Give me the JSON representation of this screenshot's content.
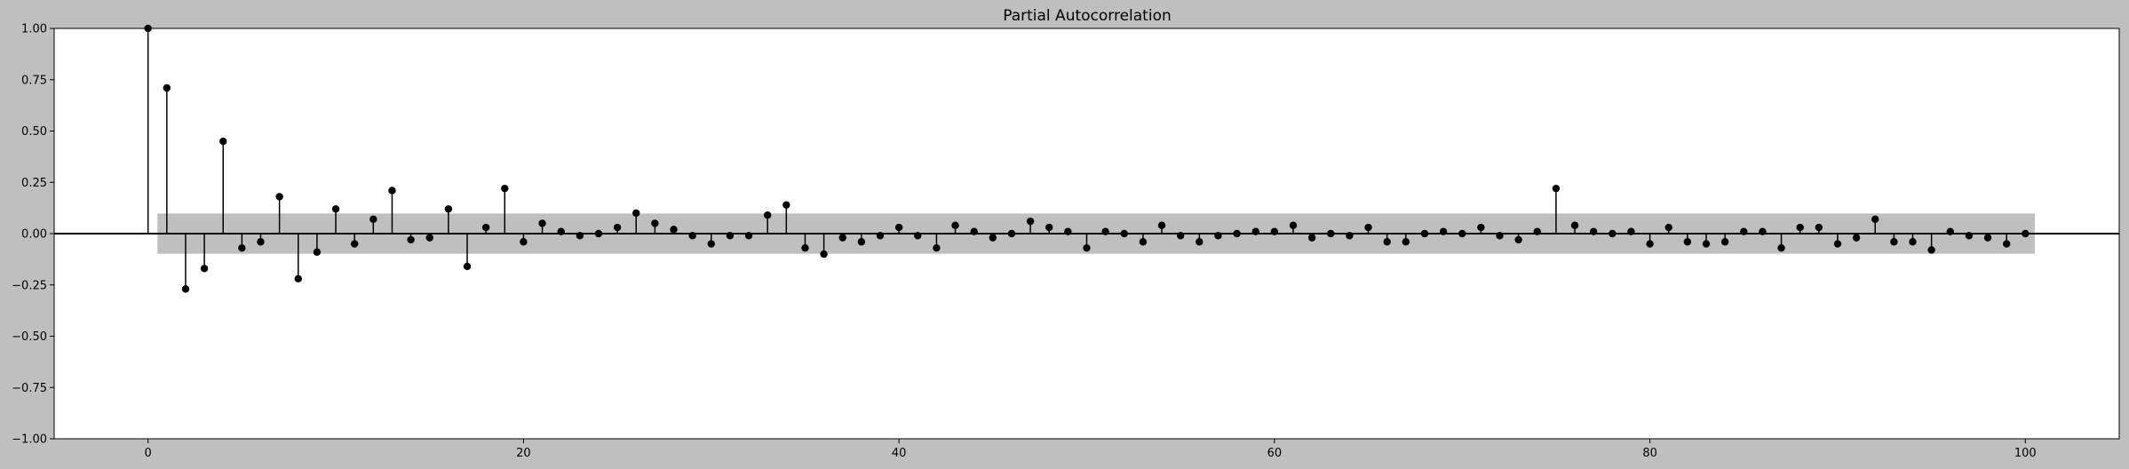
{
  "chart_data": {
    "type": "stem",
    "title": "Partial Autocorrelation",
    "xlabel": "",
    "ylabel": "",
    "xlim": [
      -5,
      105
    ],
    "ylim": [
      -1,
      1
    ],
    "x_ticks": [
      0,
      20,
      40,
      60,
      80,
      100
    ],
    "y_ticks": [
      -1.0,
      -0.75,
      -0.5,
      -0.25,
      0.0,
      0.25,
      0.5,
      0.75,
      1.0
    ],
    "x_tick_labels": [
      "0",
      "20",
      "40",
      "60",
      "80",
      "100"
    ],
    "y_tick_labels": [
      "−1.00",
      "−0.75",
      "−0.50",
      "−0.25",
      "0.00",
      "0.25",
      "0.50",
      "0.75",
      "1.00"
    ],
    "confidence_band": {
      "lag_start": 0.5,
      "lag_end": 100.5,
      "lower": -0.098,
      "upper": 0.098,
      "color": "#bfbfbf"
    },
    "series": [
      {
        "x": [
          0,
          1,
          2,
          3,
          4,
          5,
          6,
          7,
          8,
          9,
          10,
          11,
          12,
          13,
          14,
          15,
          16,
          17,
          18,
          19,
          20,
          21,
          22,
          23,
          24,
          25,
          26,
          27,
          28,
          29,
          30,
          31,
          32,
          33,
          34,
          35,
          36,
          37,
          38,
          39,
          40,
          41,
          42,
          43,
          44,
          45,
          46,
          47,
          48,
          49,
          50,
          51,
          52,
          53,
          54,
          55,
          56,
          57,
          58,
          59,
          60,
          61,
          62,
          63,
          64,
          65,
          66,
          67,
          68,
          69,
          70,
          71,
          72,
          73,
          74,
          75,
          76,
          77,
          78,
          79,
          80,
          81,
          82,
          83,
          84,
          85,
          86,
          87,
          88,
          89,
          90,
          91,
          92,
          93,
          94,
          95,
          96,
          97,
          98,
          99,
          100
        ],
        "values": [
          1.0,
          0.71,
          -0.27,
          -0.17,
          0.45,
          -0.07,
          -0.04,
          0.18,
          -0.22,
          -0.09,
          0.12,
          -0.05,
          0.07,
          0.21,
          -0.03,
          -0.02,
          0.12,
          -0.16,
          0.03,
          0.22,
          -0.04,
          0.05,
          0.01,
          -0.01,
          0.0,
          0.03,
          0.1,
          0.05,
          0.02,
          -0.01,
          -0.05,
          -0.01,
          -0.01,
          0.09,
          0.14,
          -0.07,
          -0.1,
          -0.02,
          -0.04,
          -0.01,
          0.03,
          -0.01,
          -0.07,
          0.04,
          0.01,
          -0.02,
          0.0,
          0.06,
          0.03,
          0.01,
          -0.07,
          0.01,
          0.0,
          -0.04,
          0.04,
          -0.01,
          -0.04,
          -0.01,
          0.0,
          0.01,
          0.01,
          0.04,
          -0.02,
          0.0,
          -0.01,
          0.03,
          -0.04,
          -0.04,
          0.0,
          0.01,
          0.0,
          0.03,
          -0.01,
          -0.03,
          0.01,
          0.22,
          0.04,
          0.01,
          0.0,
          0.01,
          -0.05,
          0.03,
          -0.04,
          -0.05,
          -0.04,
          0.01,
          0.01,
          -0.07,
          0.03,
          0.03,
          -0.05,
          -0.02,
          0.07,
          -0.04,
          -0.04,
          -0.08,
          0.01,
          -0.01,
          -0.02,
          -0.05,
          0.0
        ]
      }
    ],
    "colors": {
      "figure_bg": "#bfbfbf",
      "axes_bg": "#ffffff",
      "marker": "#000000",
      "zero_line": "#000000"
    },
    "grid": false,
    "legend": "none"
  }
}
